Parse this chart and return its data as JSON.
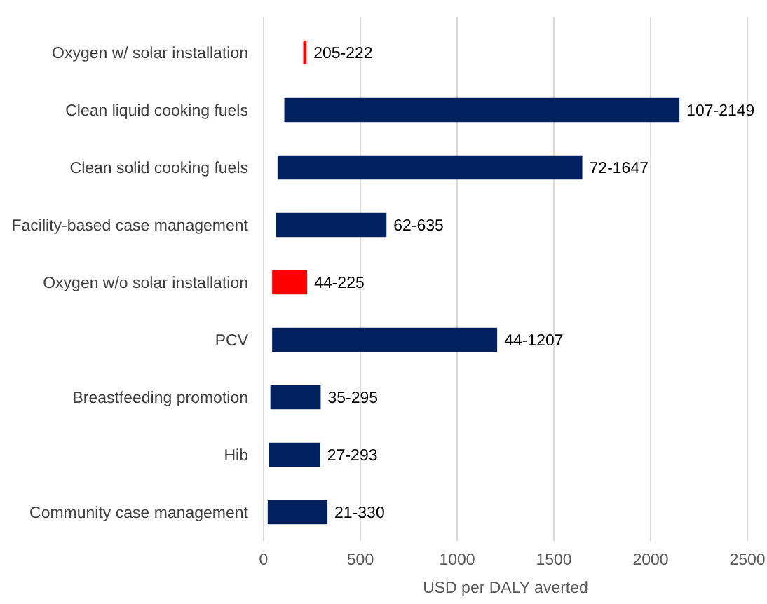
{
  "chart_data": {
    "type": "bar",
    "orientation": "horizontal",
    "categories": [
      "Oxygen w/ solar installation",
      "Clean liquid cooking fuels",
      "Clean solid cooking fuels",
      "Facility-based case management",
      "Oxygen w/o solar installation",
      "PCV",
      "Breastfeeding promotion",
      "Hib",
      "Community case management"
    ],
    "base": [
      205,
      107,
      72,
      62,
      44,
      44,
      35,
      27,
      21
    ],
    "values": [
      17,
      2042,
      1575,
      573,
      181,
      1163,
      260,
      266,
      309
    ],
    "colors": [
      "#ff0000",
      "#002060",
      "#002060",
      "#002060",
      "#ff0000",
      "#002060",
      "#002060",
      "#002060",
      "#002060"
    ],
    "value_labels": [
      "205-222",
      "107-2149",
      "72-1647",
      "62-635",
      "44-225",
      "44-1207",
      "35-295",
      "27-293",
      "21-330"
    ],
    "xlabel": "USD per DALY averted",
    "xlim": [
      0,
      2500
    ],
    "xticks": [
      0,
      500,
      1000,
      1500,
      2000,
      2500
    ],
    "grid": "x"
  }
}
